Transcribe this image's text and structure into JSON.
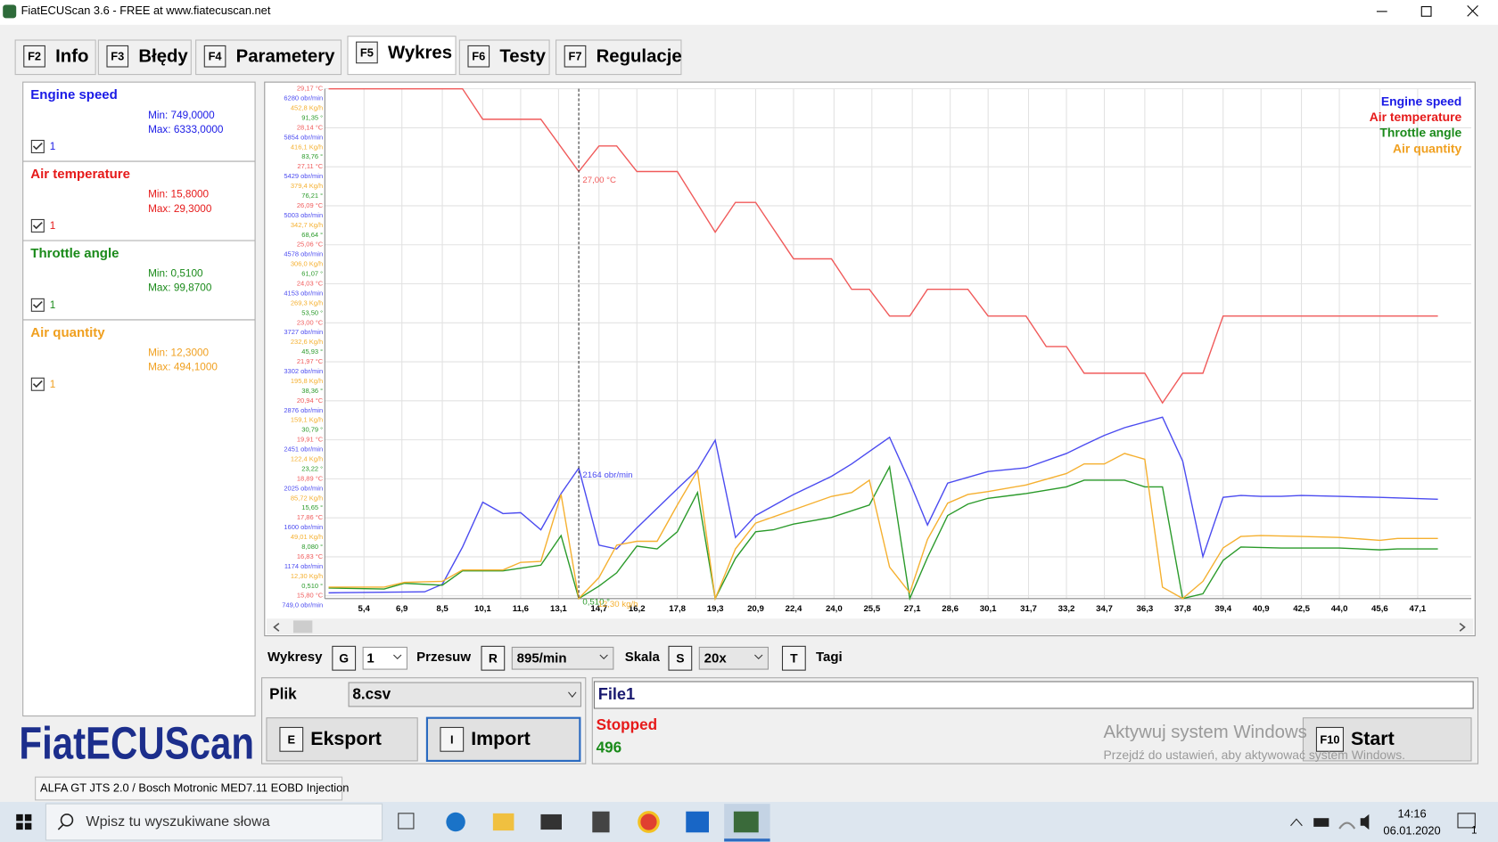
{
  "window": {
    "title": "FiatECUScan 3.6 - FREE at www.fiatecuscan.net"
  },
  "tabs": [
    {
      "key": "F2",
      "label": "Info"
    },
    {
      "key": "F3",
      "label": "Błędy"
    },
    {
      "key": "F4",
      "label": "Parametery"
    },
    {
      "key": "F5",
      "label": "Wykres"
    },
    {
      "key": "F6",
      "label": "Testy"
    },
    {
      "key": "F7",
      "label": "Regulacje"
    }
  ],
  "logo": "FiatECUScan",
  "chart_data": {
    "type": "line",
    "xlim": [
      3.85,
      49.22
    ],
    "xticks": [
      {
        "value": 5.4,
        "label": "5,4"
      },
      {
        "value": 6.9,
        "label": "6,9"
      },
      {
        "value": 8.5,
        "label": "8,5"
      },
      {
        "value": 10.1,
        "label": "10,1"
      },
      {
        "value": 11.6,
        "label": "11,6"
      },
      {
        "value": 13.1,
        "label": "13,1"
      },
      {
        "value": 14.7,
        "label": "14,7"
      },
      {
        "value": 16.2,
        "label": "16,2"
      },
      {
        "value": 17.8,
        "label": "17,8"
      },
      {
        "value": 19.3,
        "label": "19,3"
      },
      {
        "value": 20.9,
        "label": "20,9"
      },
      {
        "value": 22.4,
        "label": "22,4"
      },
      {
        "value": 24.0,
        "label": "24,0"
      },
      {
        "value": 25.5,
        "label": "25,5"
      },
      {
        "value": 27.1,
        "label": "27,1"
      },
      {
        "value": 28.6,
        "label": "28,6"
      },
      {
        "value": 30.1,
        "label": "30,1"
      },
      {
        "value": 31.7,
        "label": "31,7"
      },
      {
        "value": 33.2,
        "label": "33,2"
      },
      {
        "value": 34.7,
        "label": "34,7"
      },
      {
        "value": 36.3,
        "label": "36,3"
      },
      {
        "value": 37.8,
        "label": "37,8"
      },
      {
        "value": 39.4,
        "label": "39,4"
      },
      {
        "value": 40.9,
        "label": "40,9"
      },
      {
        "value": 42.5,
        "label": "42,5"
      },
      {
        "value": 44.0,
        "label": "44,0"
      },
      {
        "value": 45.6,
        "label": "45,6"
      },
      {
        "value": 47.1,
        "label": "47,1"
      }
    ],
    "y_labels": [
      [
        "29,17 °C",
        "6280 obr/min",
        "452,8 Kg/h",
        "91,35 °"
      ],
      [
        "28,14 °C",
        "5854 obr/min",
        "416,1 Kg/h",
        "83,76 °"
      ],
      [
        "27,11 °C",
        "5429 obr/min",
        "379,4 Kg/h",
        "76,21 °"
      ],
      [
        "26,09 °C",
        "5003 obr/min",
        "342,7 Kg/h",
        "68,64 °"
      ],
      [
        "25,06 °C",
        "4578 obr/min",
        "306,0 Kg/h",
        "61,07 °"
      ],
      [
        "24,03 °C",
        "4153 obr/min",
        "269,3 Kg/h",
        "53,50 °"
      ],
      [
        "23,00 °C",
        "3727 obr/min",
        "232,6 Kg/h",
        "45,93 °"
      ],
      [
        "21,97 °C",
        "3302 obr/min",
        "195,8 Kg/h",
        "38,36 °"
      ],
      [
        "20,94 °C",
        "2876 obr/min",
        "159,1 Kg/h",
        "30,79 °"
      ],
      [
        "19,91 °C",
        "2451 obr/min",
        "122,4 Kg/h",
        "23,22 °"
      ],
      [
        "18,89 °C",
        "2025 obr/min",
        "85,72 Kg/h",
        "15,65 °"
      ],
      [
        "17,86 °C",
        "1600 obr/min",
        "49,01 Kg/h",
        "8,080 °"
      ],
      [
        "16,83 °C",
        "1174 obr/min",
        "12,30 Kg/h",
        "0,510 °"
      ],
      [
        "15,80 °C",
        "749,0 obr/min"
      ]
    ],
    "series": [
      {
        "name": "Engine speed",
        "color": "#4b4bf0",
        "label_color": "#1a1ae6",
        "min_label": "Min: 749,0000",
        "max_label": "Max: 6333,0000",
        "check_label": "1",
        "ylim": [
          749,
          6280
        ],
        "x": [
          4.0,
          7.8,
          8.5,
          9.3,
          10.1,
          10.9,
          11.6,
          12.4,
          13.2,
          13.9,
          14.7,
          15.4,
          16.2,
          17.8,
          18.6,
          19.3,
          20.1,
          20.9,
          22.4,
          23.9,
          24.7,
          26.2,
          27.0,
          27.7,
          28.5,
          30.1,
          31.6,
          33.2,
          33.9,
          34.7,
          35.5,
          37.0,
          37.8,
          38.6,
          39.4,
          40.1,
          40.9,
          41.7,
          42.5,
          44.0,
          45.6,
          47.9
        ],
        "values": [
          811,
          822,
          904,
          1308,
          1795,
          1671,
          1681,
          1495,
          1888,
          2164,
          1329,
          1287,
          1516,
          1940,
          2147,
          2468,
          1412,
          1650,
          1878,
          2075,
          2210,
          2499,
          2013,
          1547,
          2002,
          2127,
          2168,
          2323,
          2417,
          2520,
          2603,
          2717,
          2241,
          1205,
          1847,
          1868,
          1858,
          1858,
          1868,
          1858,
          1847,
          1827
        ]
      },
      {
        "name": "Air temperature",
        "color": "#f05a5a",
        "label_color": "#e61a1a",
        "min_label": "Min: 15,8000",
        "max_label": "Max: 29,3000",
        "check_label": "1",
        "ylim": [
          15.8,
          29.17
        ],
        "x": [
          4.0,
          9.3,
          10.1,
          12.4,
          13.9,
          14.7,
          15.4,
          16.2,
          17.8,
          19.3,
          20.1,
          20.9,
          22.4,
          23.9,
          24.7,
          25.4,
          26.2,
          27.0,
          27.7,
          29.3,
          30.1,
          31.6,
          32.4,
          33.2,
          33.9,
          36.3,
          37.0,
          37.8,
          38.6,
          39.4,
          47.9
        ],
        "values": [
          29.17,
          29.17,
          28.37,
          28.37,
          27.0,
          27.67,
          27.67,
          27.0,
          27.0,
          25.41,
          26.19,
          26.19,
          24.71,
          24.71,
          23.91,
          23.91,
          23.21,
          23.21,
          23.91,
          23.91,
          23.21,
          23.21,
          22.41,
          22.41,
          21.71,
          21.71,
          20.93,
          21.71,
          21.71,
          23.21,
          23.21
        ]
      },
      {
        "name": "Throttle angle",
        "color": "#2a9a2a",
        "label_color": "#1a8a1a",
        "min_label": "Min: 0,5100",
        "max_label": "Max: 99,8700",
        "check_label": "1",
        "ylim": [
          0.51,
          98.9
        ],
        "x": [
          4.0,
          6.2,
          7.0,
          8.5,
          9.3,
          10.9,
          12.4,
          13.2,
          13.9,
          14.7,
          15.4,
          16.2,
          17.0,
          17.8,
          18.6,
          19.3,
          20.1,
          20.9,
          21.6,
          22.4,
          23.9,
          25.4,
          26.2,
          27.0,
          27.7,
          28.5,
          29.3,
          30.1,
          31.6,
          33.2,
          33.9,
          35.5,
          36.3,
          37.0,
          37.8,
          38.6,
          39.4,
          40.1,
          41.7,
          44.0,
          45.6,
          46.3,
          47.9
        ],
        "values": [
          2.54,
          2.35,
          3.46,
          3.09,
          5.85,
          5.85,
          6.96,
          12.67,
          0.51,
          2.91,
          5.48,
          10.64,
          10.09,
          13.41,
          20.96,
          0.51,
          8.25,
          13.41,
          13.78,
          14.88,
          16.17,
          18.57,
          25.94,
          0.51,
          8.43,
          16.54,
          18.75,
          19.86,
          20.78,
          22.07,
          23.36,
          23.36,
          22.07,
          22.07,
          0.51,
          1.43,
          7.88,
          10.46,
          10.27,
          10.27,
          9.91,
          10.09,
          10.09
        ]
      },
      {
        "name": "Air quantity",
        "color": "#f5b030",
        "label_color": "#f0a020",
        "min_label": "Min: 12,3000",
        "max_label": "Max: 494,1000",
        "check_label": "1",
        "ylim": [
          12.3,
          489.4
        ],
        "x": [
          4.0,
          6.2,
          7.0,
          8.5,
          9.3,
          10.9,
          11.6,
          12.4,
          13.2,
          13.9,
          14.7,
          15.4,
          16.2,
          17.0,
          17.8,
          18.6,
          19.3,
          20.1,
          20.9,
          22.4,
          23.9,
          24.7,
          25.4,
          26.2,
          27.0,
          27.7,
          28.5,
          29.3,
          30.1,
          31.6,
          33.2,
          33.9,
          34.7,
          35.5,
          36.3,
          37.0,
          37.8,
          38.6,
          39.4,
          40.1,
          40.9,
          42.5,
          44.0,
          45.6,
          46.3,
          47.9
        ],
        "values": [
          23.0,
          23.0,
          27.5,
          28.4,
          39.1,
          39.1,
          46.2,
          47.1,
          109.7,
          12.3,
          32.0,
          62.3,
          65.9,
          65.9,
          99.9,
          132.0,
          12.3,
          58.8,
          82.9,
          95.4,
          107.9,
          111.5,
          123.1,
          41.8,
          17.7,
          67.7,
          101.6,
          109.7,
          112.4,
          118.6,
          129.3,
          138.3,
          138.3,
          148.1,
          142.7,
          23.0,
          12.3,
          28.4,
          59.7,
          70.4,
          71.3,
          70.4,
          69.5,
          66.8,
          68.6,
          68.6
        ]
      }
    ],
    "cursor": {
      "x": 13.9,
      "labels": [
        "27,00 °C",
        "2164 obr/min",
        "0,510 °",
        "12,30 kg/h"
      ]
    }
  },
  "controls": {
    "charts_label": "Wykresy",
    "charts_key": "G",
    "charts_value": "1",
    "shift_label": "Przesuw",
    "shift_key": "R",
    "shift_value": "895/min",
    "scale_label": "Skala",
    "scale_key": "S",
    "scale_value": "20x",
    "tags_key": "T",
    "tags_label": "Tagi"
  },
  "file_panel": {
    "label": "Plik",
    "file": "8.csv",
    "export_key": "E",
    "export_label": "Eksport",
    "import_key": "I",
    "import_label": "Import"
  },
  "status_panel": {
    "name": "File1",
    "state": "Stopped",
    "count": "496",
    "watermark_title": "Aktywuj system Windows",
    "watermark_text": "Przejdź do ustawień, aby aktywować system Windows.",
    "start_key": "F10",
    "start_label": "Start"
  },
  "status_bar": "ALFA GT JTS 2.0 / Bosch Motronic MED7.11 EOBD Injection",
  "taskbar": {
    "search": "Wpisz tu wyszukiwane słowa",
    "time": "14:16",
    "date": "06.01.2020",
    "notifications": "1"
  }
}
